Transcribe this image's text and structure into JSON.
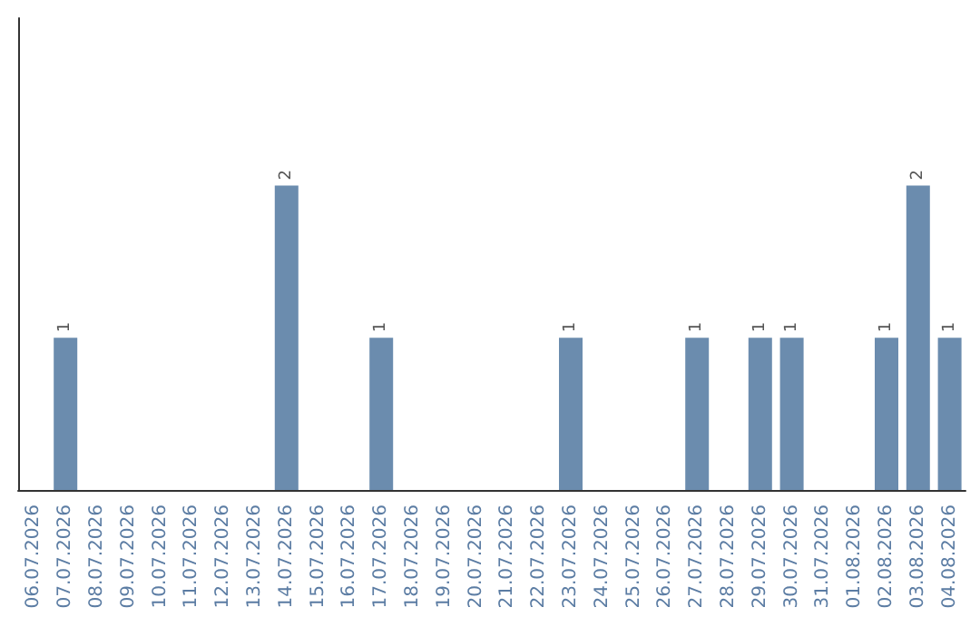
{
  "chart_data": {
    "type": "bar",
    "categories": [
      "06.07.2026",
      "07.07.2026",
      "08.07.2026",
      "09.07.2026",
      "10.07.2026",
      "11.07.2026",
      "12.07.2026",
      "13.07.2026",
      "14.07.2026",
      "15.07.2026",
      "16.07.2026",
      "17.07.2026",
      "18.07.2026",
      "19.07.2026",
      "20.07.2026",
      "21.07.2026",
      "22.07.2026",
      "23.07.2026",
      "24.07.2026",
      "25.07.2026",
      "26.07.2026",
      "27.07.2026",
      "28.07.2026",
      "29.07.2026",
      "30.07.2026",
      "31.07.2026",
      "01.08.2026",
      "02.08.2026",
      "03.08.2026",
      "04.08.2026"
    ],
    "values": [
      0,
      1,
      0,
      0,
      0,
      0,
      0,
      0,
      2,
      0,
      0,
      1,
      0,
      0,
      0,
      0,
      0,
      1,
      0,
      0,
      0,
      1,
      0,
      1,
      1,
      0,
      0,
      1,
      2,
      1
    ],
    "value_labels": [
      null,
      "1",
      null,
      null,
      null,
      null,
      null,
      null,
      "2",
      null,
      null,
      "1",
      null,
      null,
      null,
      null,
      null,
      "1",
      null,
      null,
      null,
      "1",
      null,
      "1",
      "1",
      null,
      null,
      "1",
      "2",
      "1"
    ],
    "color": "#6b8cae",
    "grid": false
  }
}
